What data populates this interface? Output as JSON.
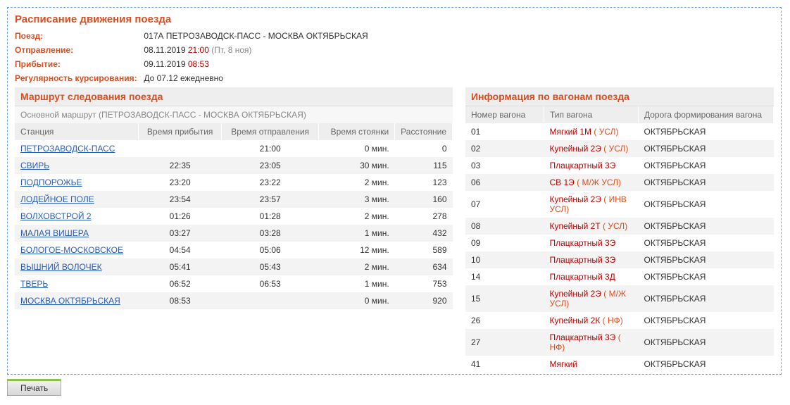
{
  "main_title": "Расписание движения поезда",
  "info": {
    "train_label": "Поезд:",
    "train_value": "017А ПЕТРОЗАВОДСК-ПАСС - МОСКВА ОКТЯБРЬСКАЯ",
    "depart_label": "Отправление:",
    "depart_date": "08.11.2019",
    "depart_time": "21:00",
    "depart_day": "(Пт, 8 ноя)",
    "arrive_label": "Прибытие:",
    "arrive_date": "09.11.2019",
    "arrive_time": "08:53",
    "reg_label": "Регулярность курсирования:",
    "reg_value": "До 07.12 ежедневно"
  },
  "route": {
    "title": "Маршрут следования поезда",
    "subtitle": "Основной маршрут (ПЕТРОЗАВОДСК-ПАСС - МОСКВА ОКТЯБРЬСКАЯ)",
    "cols": {
      "station": "Станция",
      "arr": "Время прибытия",
      "dep": "Время отправления",
      "stop": "Время стоянки",
      "dist": "Расстояние"
    },
    "rows": [
      {
        "station": "ПЕТРОЗАВОДСК-ПАСС",
        "arr": "",
        "dep": "21:00",
        "stop": "0 мин.",
        "dist": "0"
      },
      {
        "station": "СВИРЬ",
        "arr": "22:35",
        "dep": "23:05",
        "stop": "30 мин.",
        "dist": "115"
      },
      {
        "station": "ПОДПОРОЖЬЕ",
        "arr": "23:20",
        "dep": "23:22",
        "stop": "2 мин.",
        "dist": "123"
      },
      {
        "station": "ЛОДЕЙНОЕ ПОЛЕ",
        "arr": "23:54",
        "dep": "23:57",
        "stop": "3 мин.",
        "dist": "160"
      },
      {
        "station": "ВОЛХОВСТРОЙ 2",
        "arr": "01:26",
        "dep": "01:28",
        "stop": "2 мин.",
        "dist": "278"
      },
      {
        "station": "МАЛАЯ ВИШЕРА",
        "arr": "03:27",
        "dep": "03:28",
        "stop": "1 мин.",
        "dist": "432"
      },
      {
        "station": "БОЛОГОЕ-МОСКОВСКОЕ",
        "arr": "04:54",
        "dep": "05:06",
        "stop": "12 мин.",
        "dist": "589"
      },
      {
        "station": "ВЫШНИЙ ВОЛОЧЕК",
        "arr": "05:41",
        "dep": "05:43",
        "stop": "2 мин.",
        "dist": "634"
      },
      {
        "station": "ТВЕРЬ",
        "arr": "06:52",
        "dep": "06:53",
        "stop": "1 мин.",
        "dist": "753"
      },
      {
        "station": "МОСКВА ОКТЯБРЬСКАЯ",
        "arr": "08:53",
        "dep": "",
        "stop": "0 мин.",
        "dist": "920"
      }
    ]
  },
  "cars": {
    "title": "Информация по вагонам поезда",
    "cols": {
      "num": "Номер вагона",
      "type": "Тип вагона",
      "road": "Дорога формирования вагона"
    },
    "rows": [
      {
        "num": "01",
        "type": "Мягкий 1М",
        "note": "( УСЛ)",
        "road": "ОКТЯБРЬСКАЯ"
      },
      {
        "num": "02",
        "type": "Купейный 2Э",
        "note": "( УСЛ)",
        "road": "ОКТЯБРЬСКАЯ"
      },
      {
        "num": "03",
        "type": "Плацкартный 3Э",
        "note": "",
        "road": "ОКТЯБРЬСКАЯ"
      },
      {
        "num": "06",
        "type": "СВ 1Э",
        "note": "( М/Ж УСЛ)",
        "road": "ОКТЯБРЬСКАЯ"
      },
      {
        "num": "07",
        "type": "Купейный 2Э",
        "note": "( ИНВ УСЛ)",
        "road": "ОКТЯБРЬСКАЯ"
      },
      {
        "num": "08",
        "type": "Купейный 2Т",
        "note": "( УСЛ)",
        "road": "ОКТЯБРЬСКАЯ"
      },
      {
        "num": "09",
        "type": "Плацкартный 3Э",
        "note": "",
        "road": "ОКТЯБРЬСКАЯ"
      },
      {
        "num": "10",
        "type": "Плацкартный 3Э",
        "note": "",
        "road": "ОКТЯБРЬСКАЯ"
      },
      {
        "num": "14",
        "type": "Плацкартный 3Д",
        "note": "",
        "road": "ОКТЯБРЬСКАЯ"
      },
      {
        "num": "15",
        "type": "Купейный 2Э",
        "note": "( М/Ж УСЛ)",
        "road": "ОКТЯБРЬСКАЯ"
      },
      {
        "num": "26",
        "type": "Купейный 2К",
        "note": "( НФ)",
        "road": "ОКТЯБРЬСКАЯ"
      },
      {
        "num": "27",
        "type": "Плацкартный 3Э",
        "note": "( НФ)",
        "road": "ОКТЯБРЬСКАЯ"
      },
      {
        "num": "41",
        "type": "Мягкий",
        "note": "",
        "road": "ОКТЯБРЬСКАЯ"
      }
    ]
  },
  "print_label": "Печать"
}
